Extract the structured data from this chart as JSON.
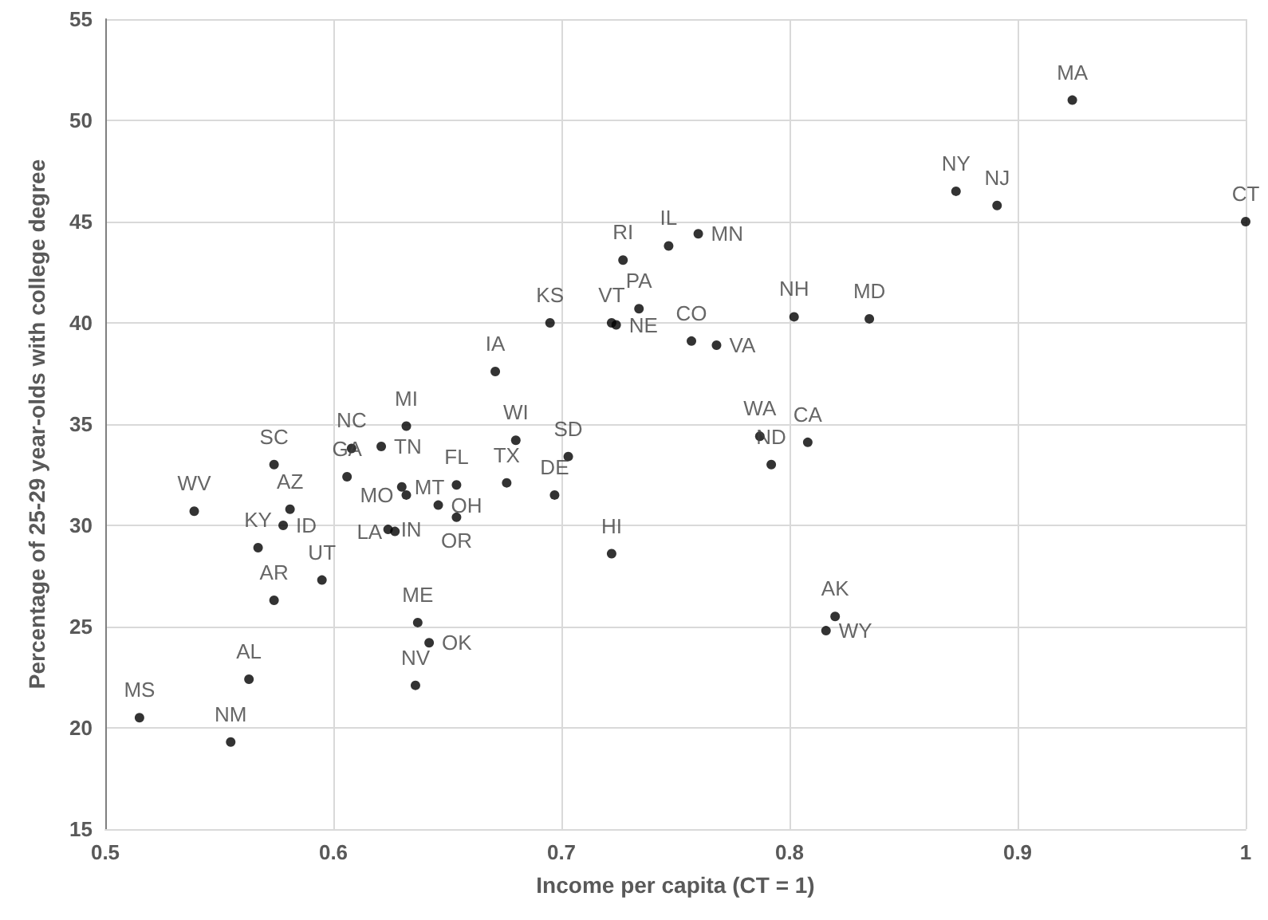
{
  "chart_data": {
    "type": "scatter",
    "xlabel": "Income per capita (CT = 1)",
    "ylabel": "Percentage of 25-29 year-olds with college degree",
    "xlim": [
      0.5,
      1
    ],
    "xticks": [
      0.5,
      0.6,
      0.7,
      0.8,
      0.9,
      1
    ],
    "ylim": [
      15,
      55
    ],
    "yticks": [
      15,
      20,
      25,
      30,
      35,
      40,
      45,
      50,
      55
    ],
    "grid": true,
    "marker": "circle",
    "series": [
      {
        "color": "#000000",
        "x": [
          0.515,
          0.555,
          0.563,
          0.574,
          0.595,
          0.567,
          0.539,
          0.578,
          0.581,
          0.574,
          0.606,
          0.608,
          0.621,
          0.632,
          0.63,
          0.632,
          0.624,
          0.627,
          0.637,
          0.642,
          0.636,
          0.646,
          0.654,
          0.654,
          0.676,
          0.68,
          0.703,
          0.697,
          0.671,
          0.695,
          0.722,
          0.724,
          0.734,
          0.727,
          0.747,
          0.76,
          0.757,
          0.768,
          0.722,
          0.787,
          0.792,
          0.808,
          0.802,
          0.835,
          0.82,
          0.816,
          0.873,
          0.891,
          0.924,
          1.0
        ],
        "values": [
          20.5,
          19.3,
          22.4,
          26.3,
          27.3,
          28.9,
          30.7,
          30.0,
          30.8,
          33.0,
          32.4,
          33.8,
          33.9,
          34.9,
          31.9,
          31.5,
          29.8,
          29.7,
          25.2,
          24.2,
          22.1,
          31.0,
          32.0,
          30.4,
          32.1,
          34.2,
          33.4,
          31.5,
          37.6,
          40.0,
          40.0,
          39.9,
          40.7,
          43.1,
          43.8,
          44.4,
          39.1,
          38.9,
          28.6,
          34.4,
          33.0,
          34.1,
          40.3,
          40.2,
          25.5,
          24.8,
          46.5,
          45.8,
          51.0,
          45.0
        ],
        "value_labels": [
          "MS",
          "NM",
          "AL",
          "AR",
          "UT",
          "KY",
          "WV",
          "ID",
          "AZ",
          "SC",
          "GA",
          "NC",
          "TN",
          "MI",
          "MT",
          "MO",
          "IN",
          "LA",
          "ME",
          "OK",
          "NV",
          "OH",
          "FL",
          "OR",
          "TX",
          "WI",
          "SD",
          "DE",
          "IA",
          "KS",
          "VT",
          "NE",
          "PA",
          "RI",
          "IL",
          "MN",
          "CO",
          "VA",
          "HI",
          "WA",
          "ND",
          "CA",
          "NH",
          "MD",
          "AK",
          "WY",
          "NY",
          "NJ",
          "MA",
          "CT"
        ]
      }
    ]
  }
}
